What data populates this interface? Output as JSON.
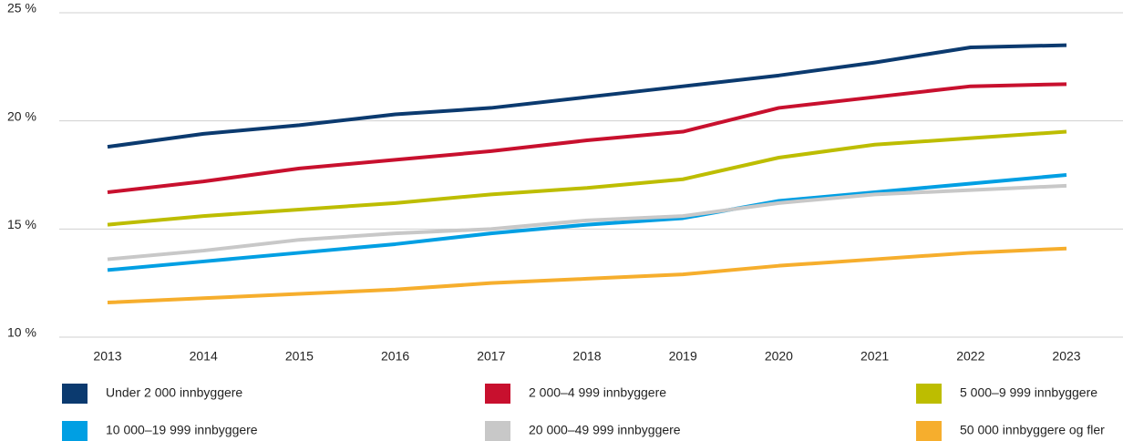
{
  "chart_data": {
    "type": "line",
    "categories": [
      "2013",
      "2014",
      "2015",
      "2016",
      "2017",
      "2018",
      "2019",
      "2020",
      "2021",
      "2022",
      "2023"
    ],
    "series": [
      {
        "name": "Under 2 000 innbyggere",
        "color": "#0b3a6f",
        "values": [
          18.8,
          19.4,
          19.8,
          20.3,
          20.6,
          21.1,
          21.6,
          22.1,
          22.7,
          23.4,
          23.5
        ]
      },
      {
        "name": "2 000–4 999 innbyggere",
        "color": "#c8102e",
        "values": [
          16.7,
          17.2,
          17.8,
          18.2,
          18.6,
          19.1,
          19.5,
          20.6,
          21.1,
          21.6,
          21.7
        ]
      },
      {
        "name": "5 000–9 999 innbyggere",
        "color": "#bdbd00",
        "values": [
          15.2,
          15.6,
          15.9,
          16.2,
          16.6,
          16.9,
          17.3,
          18.3,
          18.9,
          19.2,
          19.5
        ]
      },
      {
        "name": "10 000–19 999 innbyggere",
        "color": "#009fe3",
        "values": [
          13.1,
          13.5,
          13.9,
          14.3,
          14.8,
          15.2,
          15.5,
          16.3,
          16.7,
          17.1,
          17.5
        ]
      },
      {
        "name": "20 000–49 999 innbyggere",
        "color": "#c8c8c8",
        "values": [
          13.6,
          14.0,
          14.5,
          14.8,
          15.0,
          15.4,
          15.6,
          16.2,
          16.6,
          16.8,
          17.0
        ]
      },
      {
        "name": "50 000 innbyggere og fler",
        "color": "#f6ae2d",
        "values": [
          11.6,
          11.8,
          12.0,
          12.2,
          12.5,
          12.7,
          12.9,
          13.3,
          13.6,
          13.9,
          14.1
        ]
      }
    ],
    "ylim": [
      10,
      25
    ],
    "yticks": [
      {
        "value": 10,
        "label": "10 %"
      },
      {
        "value": 15,
        "label": "15 %"
      },
      {
        "value": 20,
        "label": "20 %"
      },
      {
        "value": 25,
        "label": "25 %"
      }
    ],
    "grid": true,
    "legend": "bottom"
  }
}
